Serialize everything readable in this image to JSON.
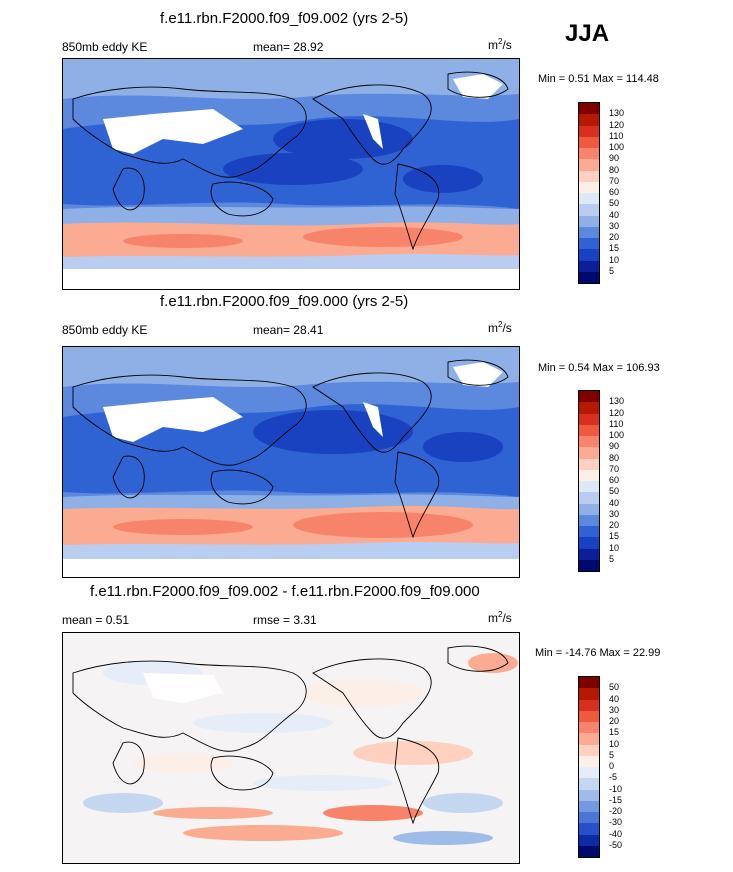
{
  "season": "JJA",
  "units_main": "m",
  "units_sup": "2",
  "units_tail": "/s",
  "panels": [
    {
      "title": "f.e11.rbn.F2000.f09_f09.002 (yrs 2-5)",
      "left_label": "850mb eddy KE",
      "stat": "mean=  28.92",
      "minmax": "Min =   0.51 Max = 114.48",
      "levels": [
        "130",
        "120",
        "110",
        "100",
        "90",
        "80",
        "70",
        "60",
        "50",
        "40",
        "30",
        "20",
        "15",
        "10",
        "5"
      ]
    },
    {
      "title": "f.e11.rbn.F2000.f09_f09.000 (yrs 2-5)",
      "left_label": "850mb eddy KE",
      "stat": "mean=  28.41",
      "minmax": "Min =   0.54 Max = 106.93",
      "levels": [
        "130",
        "120",
        "110",
        "100",
        "90",
        "80",
        "70",
        "60",
        "50",
        "40",
        "30",
        "20",
        "15",
        "10",
        "5"
      ]
    },
    {
      "title": "f.e11.rbn.F2000.f09_f09.002 - f.e11.rbn.F2000.f09_f09.000",
      "left_label": "mean =   0.51",
      "stat": "rmse =   3.31",
      "minmax": "Min = -14.76 Max =  22.99",
      "levels": [
        "50",
        "40",
        "30",
        "20",
        "15",
        "10",
        "5",
        "0",
        "-5",
        "-10",
        "-15",
        "-20",
        "-30",
        "-40",
        "-50"
      ]
    }
  ],
  "colors": {
    "abs_scale": [
      "#7f0000",
      "#b51a00",
      "#d7301f",
      "#ef5a3a",
      "#f7846a",
      "#fbab92",
      "#fdd0c0",
      "#fcefe8",
      "#dfe8f7",
      "#b8cdef",
      "#8fb0e7",
      "#5c88dd",
      "#2f63d4",
      "#1842c0",
      "#0a1f98",
      "#000a6e"
    ],
    "diff_scale": [
      "#7f0000",
      "#b51a00",
      "#d7301f",
      "#ef5a3a",
      "#f7846a",
      "#fbab92",
      "#fdd0c0",
      "#fcefe8",
      "#e6edf9",
      "#c5d6f1",
      "#9fbbe8",
      "#7399df",
      "#4a77d6",
      "#2451c8",
      "#0c2ba6",
      "#000a6e"
    ]
  },
  "chart_data": [
    {
      "type": "heatmap",
      "title": "f.e11.rbn.F2000.f09_f09.002 (yrs 2-5)",
      "variable": "850mb eddy KE",
      "mean": 28.92,
      "min": 0.51,
      "max": 114.48,
      "contour_levels": [
        5,
        10,
        15,
        20,
        30,
        40,
        50,
        60,
        70,
        80,
        90,
        100,
        110,
        120,
        130
      ]
    },
    {
      "type": "heatmap",
      "title": "f.e11.rbn.F2000.f09_f09.000 (yrs 2-5)",
      "variable": "850mb eddy KE",
      "mean": 28.41,
      "min": 0.54,
      "max": 106.93,
      "contour_levels": [
        5,
        10,
        15,
        20,
        30,
        40,
        50,
        60,
        70,
        80,
        90,
        100,
        110,
        120,
        130
      ]
    },
    {
      "type": "heatmap",
      "title": "f.e11.rbn.F2000.f09_f09.002 - f.e11.rbn.F2000.f09_f09.000",
      "mean": 0.51,
      "rmse": 3.31,
      "min": -14.76,
      "max": 22.99,
      "contour_levels": [
        -50,
        -40,
        -30,
        -20,
        -15,
        -10,
        -5,
        0,
        5,
        10,
        15,
        20,
        30,
        40,
        50
      ]
    }
  ]
}
